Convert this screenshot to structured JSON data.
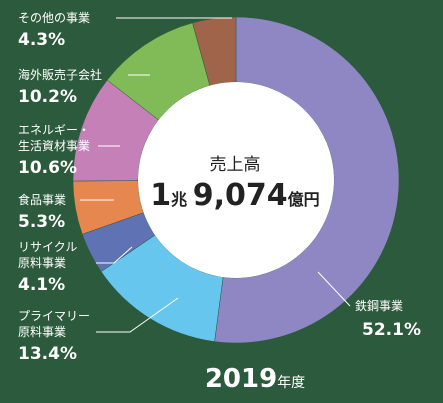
{
  "chart_data": {
    "type": "donut",
    "center_label": "売上高",
    "total": [
      "1",
      "兆",
      "9,074",
      "億円"
    ],
    "year": "2019",
    "year_suffix": "年度",
    "categories": [
      "鉄鋼事業",
      "プライマリー\n原料事業",
      "リサイクル\n原料事業",
      "食品事業",
      "エネルギー・\n生活資材事業",
      "海外販売子会社",
      "その他の事業"
    ],
    "values": [
      52.1,
      13.4,
      4.1,
      5.3,
      10.6,
      10.2,
      4.3
    ],
    "value_labels": [
      "52.1%",
      "13.4%",
      "4.1%",
      "5.3%",
      "10.6%",
      "10.2%",
      "4.3%"
    ],
    "colors": [
      "#8e87c4",
      "#66c6ee",
      "#5e72b4",
      "#e5874f",
      "#c480b7",
      "#80bb57",
      "#9f644a"
    ]
  }
}
